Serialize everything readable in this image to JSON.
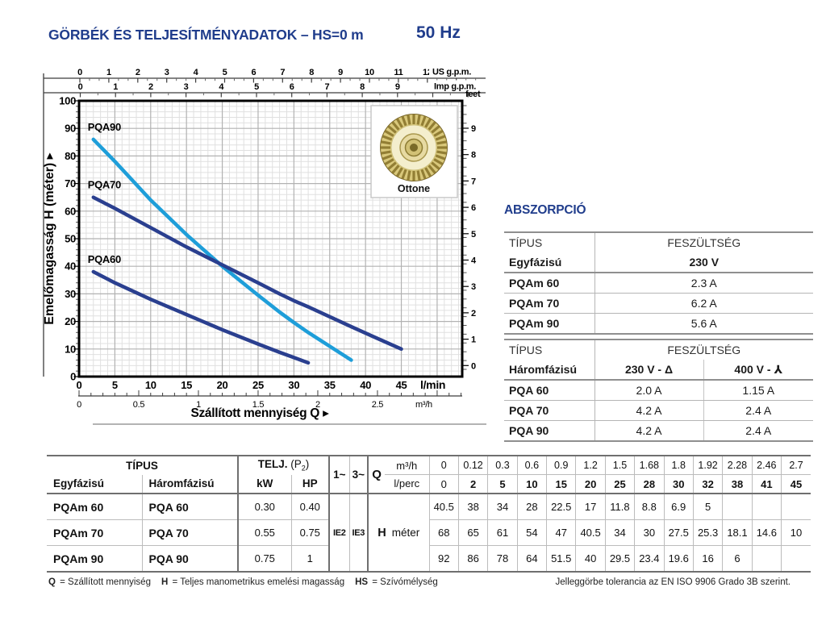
{
  "page": {
    "title": "GÖRBÉK ÉS TELJESÍTMÉNYADATOK  –  HS=0 m",
    "frequency": "50 Hz",
    "navy": "#203d8c"
  },
  "chart_data": {
    "type": "line",
    "title": "",
    "xlabel": "Szállított mennyiség  Q",
    "ylabel": "Emelőmagasság H (méter)",
    "x_axes": {
      "lmin": {
        "unit": "l/min",
        "ticks": [
          0,
          5,
          10,
          15,
          20,
          25,
          30,
          35,
          40,
          45
        ],
        "max": 53.5
      },
      "m3h": {
        "unit": "m³/h",
        "ticks": [
          0,
          0.5,
          1,
          1.5,
          2,
          2.5
        ],
        "lmin_per_unit": 16.667
      },
      "us_gpm": {
        "unit": "US g.p.m.",
        "ticks": [
          0,
          1,
          2,
          3,
          4,
          5,
          6,
          7,
          8,
          9,
          10,
          11,
          12
        ]
      },
      "imp_gpm": {
        "unit": "Imp g.p.m.",
        "ticks": [
          0,
          1,
          2,
          3,
          4,
          5,
          6,
          7,
          8,
          9
        ]
      }
    },
    "y_axes": {
      "meters": {
        "ticks": [
          0,
          10,
          20,
          30,
          40,
          50,
          60,
          70,
          80,
          90,
          100
        ],
        "lim": [
          0,
          100
        ]
      },
      "feet": {
        "unit": "feet",
        "labels": [
          9,
          8,
          7,
          6,
          5,
          4,
          3,
          2,
          1,
          0
        ]
      }
    },
    "grid": {
      "minor_x_lmin": 1,
      "major_x_lmin": 5,
      "minor_y_m": 2,
      "major_y_m": 10
    },
    "series": [
      {
        "name": "PQA90",
        "color": "#1e9ed9",
        "points": [
          [
            2,
            86
          ],
          [
            5,
            78
          ],
          [
            10,
            64
          ],
          [
            15,
            51.5
          ],
          [
            20,
            40
          ],
          [
            25,
            29.5
          ],
          [
            28,
            23.4
          ],
          [
            30,
            19.6
          ],
          [
            32,
            16
          ],
          [
            38,
            6
          ]
        ]
      },
      {
        "name": "PQA70",
        "color": "#2a3f8f",
        "points": [
          [
            2,
            65
          ],
          [
            5,
            61
          ],
          [
            10,
            54
          ],
          [
            15,
            47
          ],
          [
            20,
            40.5
          ],
          [
            25,
            34
          ],
          [
            28,
            30
          ],
          [
            30,
            27.5
          ],
          [
            32,
            25.3
          ],
          [
            38,
            18.1
          ],
          [
            41,
            14.6
          ],
          [
            45,
            10
          ]
        ]
      },
      {
        "name": "PQA60",
        "color": "#2a3f8f",
        "points": [
          [
            2,
            38
          ],
          [
            5,
            34
          ],
          [
            10,
            28
          ],
          [
            15,
            22.5
          ],
          [
            20,
            17
          ],
          [
            25,
            11.8
          ],
          [
            28,
            8.8
          ],
          [
            30,
            6.9
          ],
          [
            32,
            5
          ]
        ]
      }
    ],
    "impeller_caption": "Ottone"
  },
  "absorption": {
    "heading": "ABSZORPCIÓ",
    "single_phase": {
      "col1_header": "TÍPUS",
      "col2_header": "FESZÜLTSÉG",
      "subrow": [
        "Egyfázisú",
        "230 V"
      ],
      "rows": [
        [
          "PQAm 60",
          "2.3 A"
        ],
        [
          "PQAm 70",
          "6.2 A"
        ],
        [
          "PQAm 90",
          "5.6 A"
        ]
      ]
    },
    "three_phase": {
      "col1_header": "TÍPUS",
      "col2_header": "FESZÜLTSÉG",
      "subrow": [
        "Háromfázisú",
        "230 V - Δ",
        "400 V - ⅄"
      ],
      "rows": [
        [
          "PQA 60",
          "2.0 A",
          "1.15 A"
        ],
        [
          "PQA 70",
          "4.2 A",
          "2.4 A"
        ],
        [
          "PQA 90",
          "4.2 A",
          "2.4 A"
        ]
      ]
    }
  },
  "performance_table": {
    "tipus": "TÍPUS",
    "telj_label": "TELJ.",
    "telj_paren_pre": "(P",
    "telj_sub": "2",
    "telj_paren_post": ")",
    "egyfazisu": "Egyfázisú",
    "haromfazisu": "Háromfázisú",
    "kw": "kW",
    "hp": "HP",
    "one_phase": "1~",
    "three_phase": "3~",
    "ie2": "IE2",
    "ie3": "IE3",
    "q_label": "Q",
    "m3h_label": "m³/h",
    "lperc_label": "l/perc",
    "h_label": "H",
    "h_unit": "méter",
    "q_m3h": [
      "0",
      "0.12",
      "0.3",
      "0.6",
      "0.9",
      "1.2",
      "1.5",
      "1.68",
      "1.8",
      "1.92",
      "2.28",
      "2.46",
      "2.7"
    ],
    "q_lperc": [
      "0",
      "2",
      "5",
      "10",
      "15",
      "20",
      "25",
      "28",
      "30",
      "32",
      "38",
      "41",
      "45"
    ],
    "rows": [
      {
        "single": "PQAm 60",
        "three": "PQA 60",
        "kw": "0.30",
        "hp": "0.40",
        "h": [
          "40.5",
          "38",
          "34",
          "28",
          "22.5",
          "17",
          "11.8",
          "8.8",
          "6.9",
          "5",
          "",
          "",
          ""
        ]
      },
      {
        "single": "PQAm 70",
        "three": "PQA 70",
        "kw": "0.55",
        "hp": "0.75",
        "h": [
          "68",
          "65",
          "61",
          "54",
          "47",
          "40.5",
          "34",
          "30",
          "27.5",
          "25.3",
          "18.1",
          "14.6",
          "10"
        ]
      },
      {
        "single": "PQAm 90",
        "three": "PQA 90",
        "kw": "0.75",
        "hp": "1",
        "h": [
          "92",
          "86",
          "78",
          "64",
          "51.5",
          "40",
          "29.5",
          "23.4",
          "19.6",
          "16",
          "6",
          "",
          ""
        ]
      }
    ]
  },
  "footer": {
    "legend": [
      [
        "Q",
        "= Szállított mennyiség"
      ],
      [
        "H",
        "= Teljes manometrikus emelési magasság"
      ],
      [
        "HS",
        "= Szívómélység"
      ]
    ],
    "tolerance": "Jelleggörbe tolerancia az EN ISO 9906 Grado 3B szerint."
  }
}
